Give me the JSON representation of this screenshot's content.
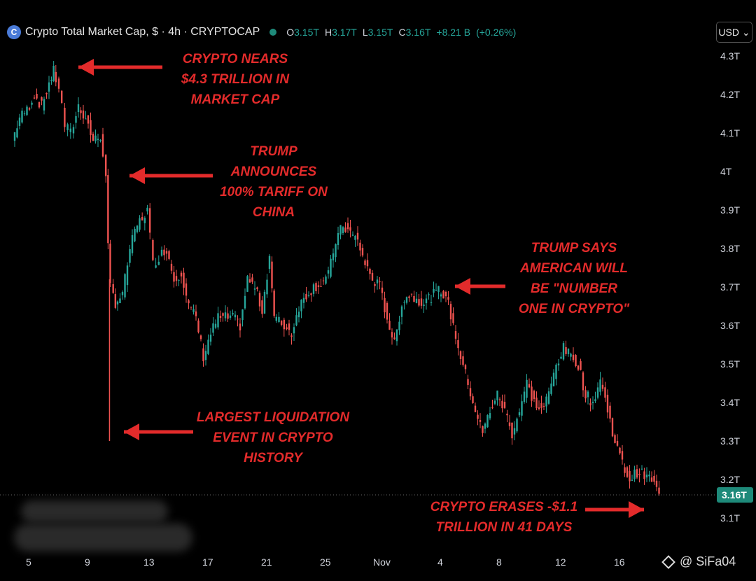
{
  "header": {
    "logo_glyph": "C",
    "title": "Crypto Total Market Cap, $ · 4h · CRYPTOCAP",
    "ohlc": [
      {
        "key": "O",
        "value": "3.15T"
      },
      {
        "key": "H",
        "value": "3.17T"
      },
      {
        "key": "L",
        "value": "3.15T"
      },
      {
        "key": "C",
        "value": "3.16T"
      },
      {
        "key": "",
        "value": "+8.21 B"
      },
      {
        "key": "",
        "value": "(+0.26%)"
      }
    ],
    "currency": "USD ⌄"
  },
  "annotations": [
    {
      "id": "nears",
      "text": "CRYPTO NEARS\n$4.3 TRILLION IN\nMARKET CAP"
    },
    {
      "id": "tariff",
      "text": "TRUMP\nANNOUNCES\n100% TARIFF ON\nCHINA"
    },
    {
      "id": "liquidation",
      "text": "LARGEST LIQUIDATION\nEVENT IN CRYPTO\nHISTORY"
    },
    {
      "id": "number-one",
      "text": "TRUMP SAYS\nAMERICAN WILL\nBE \"NUMBER\nONE IN CRYPTO\""
    },
    {
      "id": "erases",
      "text": "CRYPTO ERASES -$1.1\nTRILLION IN 41 DAYS"
    }
  ],
  "watermark": "@ SiFa04",
  "colors": {
    "up": "#26a69a",
    "down": "#ef5350",
    "annotation": "#e32b2b",
    "background": "#000000"
  },
  "chart_data": {
    "type": "candlestick",
    "ylabel_unit": "T",
    "ylim": [
      3.05,
      4.33
    ],
    "y_ticks": [
      "4.3T",
      "4.2T",
      "4.1T",
      "4T",
      "3.9T",
      "3.8T",
      "3.7T",
      "3.6T",
      "3.5T",
      "3.4T",
      "3.3T",
      "3.2T",
      "3.1T"
    ],
    "x_ticks": [
      "5",
      "9",
      "13",
      "17",
      "21",
      "25",
      "Nov",
      "4",
      "8",
      "12",
      "16"
    ],
    "current_price_label": "3.16T",
    "series": [
      {
        "name": "Crypto Total Market Cap",
        "close_path": [
          {
            "x": 4,
            "y": 4.08
          },
          {
            "x": 4.5,
            "y": 4.14
          },
          {
            "x": 5.0,
            "y": 4.16
          },
          {
            "x": 5.5,
            "y": 4.2
          },
          {
            "x": 6.0,
            "y": 4.17
          },
          {
            "x": 6.5,
            "y": 4.23
          },
          {
            "x": 6.8,
            "y": 4.26
          },
          {
            "x": 7.2,
            "y": 4.22
          },
          {
            "x": 7.6,
            "y": 4.12
          },
          {
            "x": 8.0,
            "y": 4.1
          },
          {
            "x": 8.5,
            "y": 4.17
          },
          {
            "x": 9.0,
            "y": 4.14
          },
          {
            "x": 9.5,
            "y": 4.08
          },
          {
            "x": 10.0,
            "y": 4.09
          },
          {
            "x": 10.2,
            "y": 4.05
          },
          {
            "x": 10.35,
            "y": 3.98
          },
          {
            "x": 10.5,
            "y": 3.8
          },
          {
            "x": 10.7,
            "y": 3.7
          },
          {
            "x": 11.0,
            "y": 3.66
          },
          {
            "x": 11.5,
            "y": 3.68
          },
          {
            "x": 12.0,
            "y": 3.8
          },
          {
            "x": 12.5,
            "y": 3.86
          },
          {
            "x": 13.2,
            "y": 3.9
          },
          {
            "x": 13.6,
            "y": 3.76
          },
          {
            "x": 14.0,
            "y": 3.78
          },
          {
            "x": 14.5,
            "y": 3.8
          },
          {
            "x": 15.0,
            "y": 3.72
          },
          {
            "x": 15.5,
            "y": 3.74
          },
          {
            "x": 16.0,
            "y": 3.65
          },
          {
            "x": 16.5,
            "y": 3.62
          },
          {
            "x": 17.0,
            "y": 3.52
          },
          {
            "x": 17.5,
            "y": 3.58
          },
          {
            "x": 18.0,
            "y": 3.62
          },
          {
            "x": 19.0,
            "y": 3.62
          },
          {
            "x": 19.5,
            "y": 3.6
          },
          {
            "x": 20.0,
            "y": 3.72
          },
          {
            "x": 20.5,
            "y": 3.7
          },
          {
            "x": 21.0,
            "y": 3.64
          },
          {
            "x": 21.5,
            "y": 3.78
          },
          {
            "x": 21.8,
            "y": 3.62
          },
          {
            "x": 22.5,
            "y": 3.6
          },
          {
            "x": 23.0,
            "y": 3.58
          },
          {
            "x": 23.5,
            "y": 3.65
          },
          {
            "x": 24.0,
            "y": 3.68
          },
          {
            "x": 24.5,
            "y": 3.7
          },
          {
            "x": 25.0,
            "y": 3.71
          },
          {
            "x": 25.5,
            "y": 3.73
          },
          {
            "x": 26.0,
            "y": 3.82
          },
          {
            "x": 26.5,
            "y": 3.86
          },
          {
            "x": 27.0,
            "y": 3.84
          },
          {
            "x": 27.5,
            "y": 3.82
          },
          {
            "x": 28.0,
            "y": 3.76
          },
          {
            "x": 28.5,
            "y": 3.72
          },
          {
            "x": 29.0,
            "y": 3.7
          },
          {
            "x": 29.5,
            "y": 3.62
          },
          {
            "x": 30.0,
            "y": 3.55
          },
          {
            "x": 30.5,
            "y": 3.66
          },
          {
            "x": 31.0,
            "y": 3.68
          },
          {
            "x": 32.0,
            "y": 3.66
          },
          {
            "x": 33.0,
            "y": 3.69
          },
          {
            "x": 33.5,
            "y": 3.68
          },
          {
            "x": 34.0,
            "y": 3.6
          },
          {
            "x": 34.5,
            "y": 3.52
          },
          {
            "x": 35.0,
            "y": 3.45
          },
          {
            "x": 35.5,
            "y": 3.38
          },
          {
            "x": 36.0,
            "y": 3.32
          },
          {
            "x": 36.5,
            "y": 3.38
          },
          {
            "x": 37.0,
            "y": 3.42
          },
          {
            "x": 37.5,
            "y": 3.38
          },
          {
            "x": 38.0,
            "y": 3.32
          },
          {
            "x": 38.5,
            "y": 3.38
          },
          {
            "x": 39.0,
            "y": 3.45
          },
          {
            "x": 39.5,
            "y": 3.4
          },
          {
            "x": 40.0,
            "y": 3.38
          },
          {
            "x": 40.5,
            "y": 3.42
          },
          {
            "x": 41.0,
            "y": 3.5
          },
          {
            "x": 41.5,
            "y": 3.54
          },
          {
            "x": 42.0,
            "y": 3.52
          },
          {
            "x": 42.5,
            "y": 3.5
          },
          {
            "x": 43.0,
            "y": 3.42
          },
          {
            "x": 43.5,
            "y": 3.4
          },
          {
            "x": 44.0,
            "y": 3.46
          },
          {
            "x": 44.5,
            "y": 3.38
          },
          {
            "x": 45.0,
            "y": 3.3
          },
          {
            "x": 45.5,
            "y": 3.24
          },
          {
            "x": 46.0,
            "y": 3.2
          },
          {
            "x": 46.5,
            "y": 3.22
          },
          {
            "x": 47.0,
            "y": 3.21
          },
          {
            "x": 47.5,
            "y": 3.2
          },
          {
            "x": 48.0,
            "y": 3.16
          }
        ]
      }
    ],
    "liquidation_wick": {
      "x": 10.45,
      "low": 3.3
    }
  }
}
